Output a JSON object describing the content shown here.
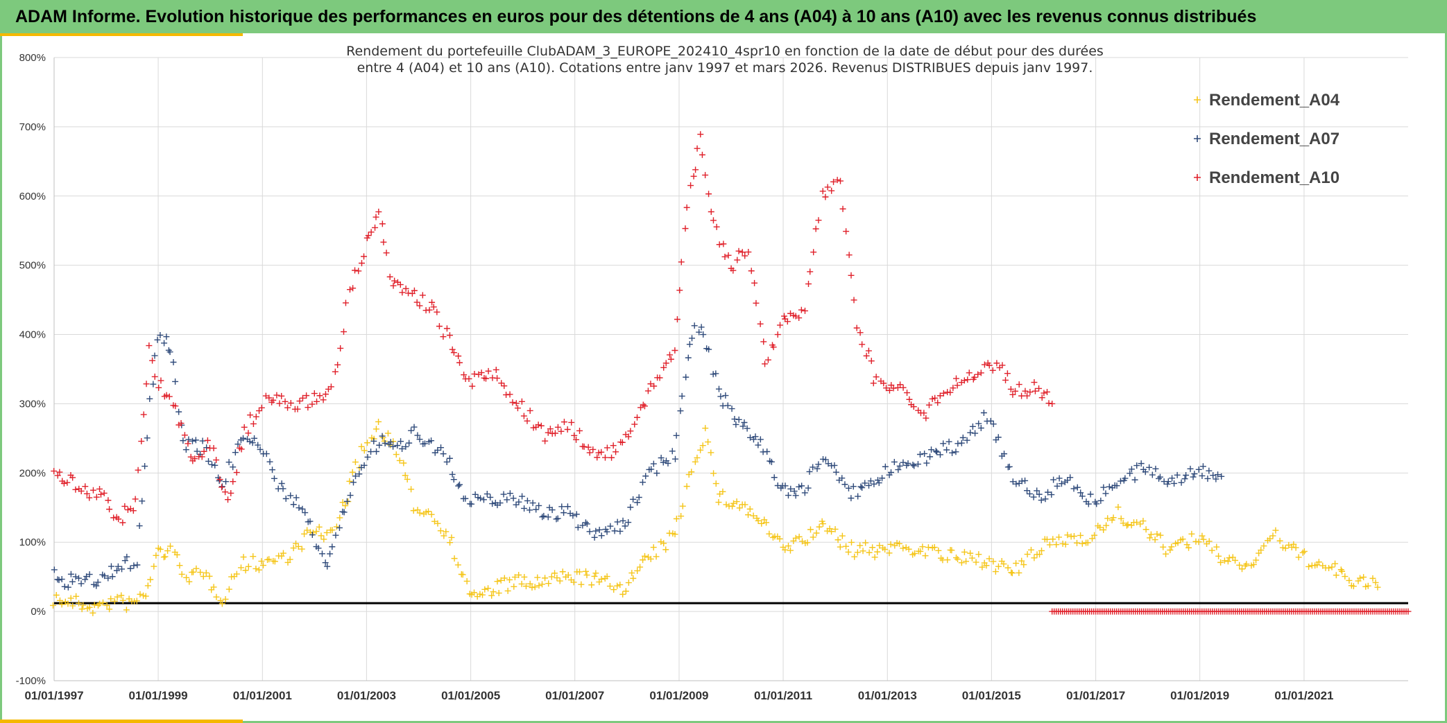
{
  "header": {
    "title": "ADAM Informe. Evolution historique des performances en euros pour des détentions de 4 ans (A04) à 10 ans (A10) avec les revenus connus distribués"
  },
  "colors": {
    "banner": "#7dc97d",
    "accent": "#f5b800",
    "A04": "#f5c518",
    "A07": "#2f4a7a",
    "A10": "#e0202a",
    "zero_line": "#000000"
  },
  "chart_data": {
    "type": "scatter",
    "title_line1": "Rendement du portefeuille ClubADAM_3_EUROPE_202410_4spr10  en fonction de la date de début pour des durées",
    "title_line2": "entre 4 (A04) et 10 ans (A10). Cotations entre janv 1997 et mars 2026. Revenus DISTRIBUES depuis janv 1997.",
    "xlabel": "",
    "ylabel": "",
    "ylim": [
      -100,
      800
    ],
    "xlim": [
      "1997-01-01",
      "2023-01-01"
    ],
    "grid": true,
    "legend_position": "top-right",
    "y_ticks": [
      "-100%",
      "0%",
      "100%",
      "200%",
      "300%",
      "400%",
      "500%",
      "600%",
      "700%",
      "800%"
    ],
    "x_ticks": [
      "01/01/1997",
      "01/01/1999",
      "01/01/2001",
      "01/01/2003",
      "01/01/2005",
      "01/01/2007",
      "01/01/2009",
      "01/01/2011",
      "01/01/2013",
      "01/01/2015",
      "01/01/2017",
      "01/01/2019",
      "01/01/2021"
    ],
    "reference_line_y": 12,
    "series": [
      {
        "name": "Rendement_A04",
        "key": "A04",
        "points": [
          [
            "1997-01-01",
            18
          ],
          [
            "1997-06-01",
            12
          ],
          [
            "1997-11-01",
            5
          ],
          [
            "1998-03-01",
            15
          ],
          [
            "1998-07-01",
            10
          ],
          [
            "1998-10-01",
            25
          ],
          [
            "1999-01-01",
            88
          ],
          [
            "1999-04-01",
            85
          ],
          [
            "1999-08-01",
            52
          ],
          [
            "1999-12-01",
            50
          ],
          [
            "2000-04-01",
            20
          ],
          [
            "2000-08-01",
            68
          ],
          [
            "2000-12-01",
            70
          ],
          [
            "2001-04-01",
            75
          ],
          [
            "2001-08-01",
            85
          ],
          [
            "2001-12-01",
            115
          ],
          [
            "2002-04-01",
            108
          ],
          [
            "2002-08-01",
            155
          ],
          [
            "2002-12-01",
            230
          ],
          [
            "2003-04-01",
            268
          ],
          [
            "2003-08-01",
            230
          ],
          [
            "2003-12-01",
            155
          ],
          [
            "2004-04-01",
            140
          ],
          [
            "2004-08-01",
            110
          ],
          [
            "2004-12-01",
            35
          ],
          [
            "2005-03-01",
            20
          ],
          [
            "2005-07-01",
            35
          ],
          [
            "2005-12-01",
            42
          ],
          [
            "2006-05-01",
            40
          ],
          [
            "2006-12-01",
            52
          ],
          [
            "2007-06-01",
            45
          ],
          [
            "2007-12-01",
            35
          ],
          [
            "2008-06-01",
            75
          ],
          [
            "2008-12-01",
            110
          ],
          [
            "2009-04-01",
            210
          ],
          [
            "2009-07-01",
            260
          ],
          [
            "2009-10-01",
            165
          ],
          [
            "2010-03-01",
            155
          ],
          [
            "2010-08-01",
            130
          ],
          [
            "2011-01-01",
            90
          ],
          [
            "2011-06-01",
            105
          ],
          [
            "2011-11-01",
            125
          ],
          [
            "2012-04-01",
            90
          ],
          [
            "2012-10-01",
            88
          ],
          [
            "2013-04-01",
            95
          ],
          [
            "2013-10-01",
            88
          ],
          [
            "2014-06-01",
            75
          ],
          [
            "2014-12-01",
            75
          ],
          [
            "2015-06-01",
            55
          ],
          [
            "2015-12-01",
            90
          ],
          [
            "2016-06-01",
            105
          ],
          [
            "2016-12-01",
            110
          ],
          [
            "2017-06-01",
            140
          ],
          [
            "2017-12-01",
            120
          ],
          [
            "2018-06-01",
            90
          ],
          [
            "2018-12-01",
            105
          ],
          [
            "2019-06-01",
            80
          ],
          [
            "2019-12-01",
            65
          ],
          [
            "2020-06-01",
            110
          ],
          [
            "2020-12-01",
            80
          ],
          [
            "2021-06-01",
            65
          ],
          [
            "2021-12-01",
            45
          ],
          [
            "2022-06-01",
            35
          ]
        ]
      },
      {
        "name": "Rendement_A07",
        "key": "A07",
        "points": [
          [
            "1997-01-01",
            50
          ],
          [
            "1997-06-01",
            42
          ],
          [
            "1997-12-01",
            45
          ],
          [
            "1998-04-01",
            65
          ],
          [
            "1998-08-01",
            75
          ],
          [
            "1998-11-01",
            300
          ],
          [
            "1999-01-01",
            400
          ],
          [
            "1999-04-01",
            380
          ],
          [
            "1999-07-01",
            245
          ],
          [
            "1999-12-01",
            235
          ],
          [
            "2000-04-01",
            180
          ],
          [
            "2000-08-01",
            255
          ],
          [
            "2000-12-01",
            250
          ],
          [
            "2001-04-01",
            185
          ],
          [
            "2001-08-01",
            165
          ],
          [
            "2001-12-01",
            120
          ],
          [
            "2002-04-01",
            65
          ],
          [
            "2002-08-01",
            150
          ],
          [
            "2002-12-01",
            215
          ],
          [
            "2003-04-01",
            245
          ],
          [
            "2003-08-01",
            235
          ],
          [
            "2003-12-01",
            260
          ],
          [
            "2004-04-01",
            245
          ],
          [
            "2004-08-01",
            215
          ],
          [
            "2004-12-01",
            155
          ],
          [
            "2005-06-01",
            165
          ],
          [
            "2005-12-01",
            160
          ],
          [
            "2006-06-01",
            145
          ],
          [
            "2006-12-01",
            140
          ],
          [
            "2007-06-01",
            115
          ],
          [
            "2007-12-01",
            120
          ],
          [
            "2008-06-01",
            200
          ],
          [
            "2008-12-01",
            230
          ],
          [
            "2009-03-01",
            375
          ],
          [
            "2009-06-01",
            420
          ],
          [
            "2009-10-01",
            320
          ],
          [
            "2010-03-01",
            270
          ],
          [
            "2010-08-01",
            240
          ],
          [
            "2011-01-01",
            175
          ],
          [
            "2011-06-01",
            175
          ],
          [
            "2011-10-01",
            230
          ],
          [
            "2012-04-01",
            170
          ],
          [
            "2012-10-01",
            185
          ],
          [
            "2013-04-01",
            215
          ],
          [
            "2013-10-01",
            225
          ],
          [
            "2014-06-01",
            240
          ],
          [
            "2014-12-01",
            285
          ],
          [
            "2015-06-01",
            195
          ],
          [
            "2015-12-01",
            165
          ],
          [
            "2016-06-01",
            195
          ],
          [
            "2016-12-01",
            160
          ],
          [
            "2017-06-01",
            185
          ],
          [
            "2017-12-01",
            205
          ],
          [
            "2018-06-01",
            190
          ],
          [
            "2018-12-01",
            205
          ],
          [
            "2019-06-01",
            195
          ]
        ]
      },
      {
        "name": "Rendement_A10",
        "key": "A10",
        "points": [
          [
            "1997-01-01",
            195
          ],
          [
            "1997-06-01",
            185
          ],
          [
            "1997-12-01",
            165
          ],
          [
            "1998-04-01",
            135
          ],
          [
            "1998-08-01",
            155
          ],
          [
            "1998-11-01",
            380
          ],
          [
            "1999-01-01",
            330
          ],
          [
            "1999-05-01",
            290
          ],
          [
            "1999-09-01",
            220
          ],
          [
            "2000-01-01",
            240
          ],
          [
            "2000-05-01",
            160
          ],
          [
            "2000-09-01",
            260
          ],
          [
            "2001-01-01",
            300
          ],
          [
            "2001-05-01",
            305
          ],
          [
            "2001-09-01",
            300
          ],
          [
            "2002-01-01",
            305
          ],
          [
            "2002-05-01",
            320
          ],
          [
            "2002-09-01",
            460
          ],
          [
            "2003-01-01",
            530
          ],
          [
            "2003-04-01",
            570
          ],
          [
            "2003-07-01",
            470
          ],
          [
            "2003-12-01",
            455
          ],
          [
            "2004-04-01",
            440
          ],
          [
            "2004-08-01",
            390
          ],
          [
            "2004-12-01",
            330
          ],
          [
            "2005-06-01",
            345
          ],
          [
            "2005-12-01",
            300
          ],
          [
            "2006-06-01",
            255
          ],
          [
            "2006-12-01",
            270
          ],
          [
            "2007-06-01",
            220
          ],
          [
            "2007-12-01",
            240
          ],
          [
            "2008-06-01",
            310
          ],
          [
            "2008-12-01",
            380
          ],
          [
            "2009-03-01",
            590
          ],
          [
            "2009-06-01",
            680
          ],
          [
            "2009-09-01",
            560
          ],
          [
            "2010-01-01",
            500
          ],
          [
            "2010-05-01",
            520
          ],
          [
            "2010-09-01",
            360
          ],
          [
            "2011-01-01",
            420
          ],
          [
            "2011-06-01",
            440
          ],
          [
            "2011-10-01",
            600
          ],
          [
            "2012-02-01",
            620
          ],
          [
            "2012-06-01",
            420
          ],
          [
            "2012-10-01",
            340
          ],
          [
            "2013-04-01",
            320
          ],
          [
            "2013-10-01",
            290
          ],
          [
            "2014-04-01",
            325
          ],
          [
            "2014-10-01",
            350
          ],
          [
            "2015-02-01",
            360
          ],
          [
            "2015-06-01",
            320
          ],
          [
            "2015-12-01",
            320
          ],
          [
            "2016-03-01",
            300
          ]
        ]
      },
      {
        "name": "",
        "key": "A10_tail",
        "color_key": "A10",
        "points": [
          [
            "2016-03-01",
            0
          ],
          [
            "2023-01-01",
            0
          ]
        ]
      }
    ]
  }
}
